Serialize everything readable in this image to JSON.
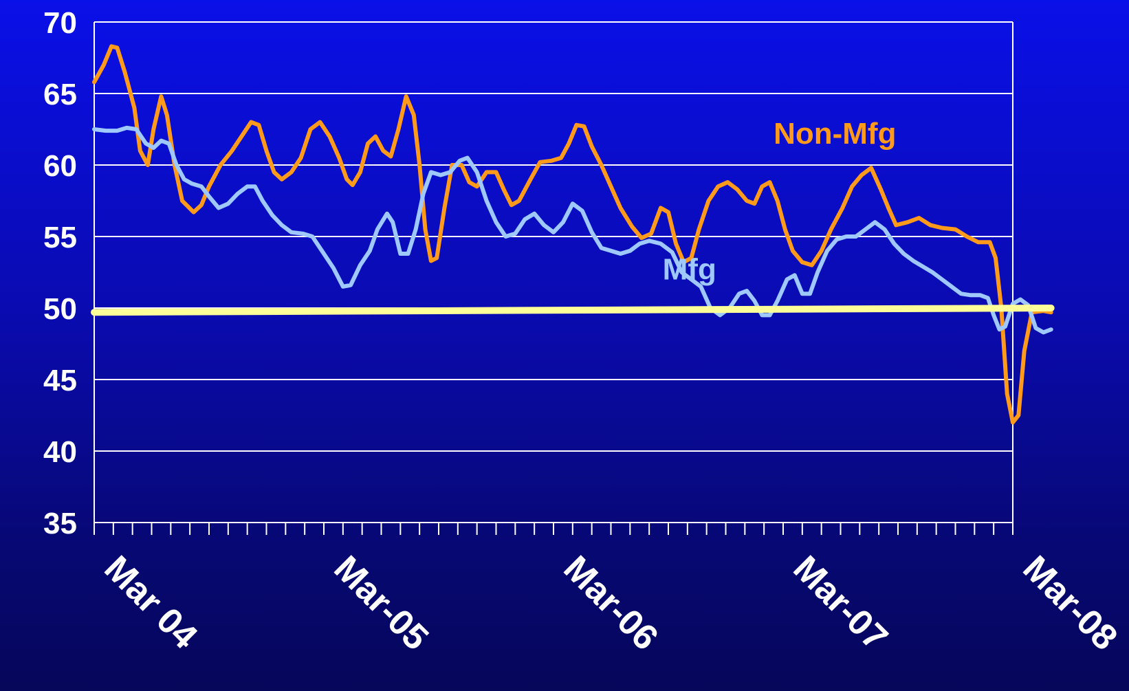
{
  "chart_data": {
    "type": "line",
    "ylim": [
      35,
      70
    ],
    "yticks": [
      35,
      40,
      45,
      50,
      55,
      60,
      65,
      70
    ],
    "xlim": [
      0,
      48
    ],
    "x_tick_count": 49,
    "x_labels": [
      {
        "x": 0,
        "label": "Mar 04"
      },
      {
        "x": 12,
        "label": "Mar-05"
      },
      {
        "x": 24,
        "label": "Mar-06"
      },
      {
        "x": 36,
        "label": "Mar-07"
      },
      {
        "x": 48,
        "label": "Mar-08"
      }
    ],
    "grid": true,
    "series": [
      {
        "name": "Non-Mfg",
        "color": "#ff9a1a",
        "label_at": [
          35.5,
          61.5
        ],
        "points": [
          [
            0,
            65.8
          ],
          [
            0.5,
            67.0
          ],
          [
            0.9,
            68.3
          ],
          [
            1.2,
            68.2
          ],
          [
            1.6,
            66.5
          ],
          [
            2.1,
            64.0
          ],
          [
            2.4,
            61.0
          ],
          [
            2.8,
            60.0
          ],
          [
            3.1,
            62.5
          ],
          [
            3.5,
            64.8
          ],
          [
            3.8,
            63.5
          ],
          [
            4.2,
            60.0
          ],
          [
            4.6,
            57.5
          ],
          [
            5.2,
            56.7
          ],
          [
            5.6,
            57.2
          ],
          [
            6.0,
            58.5
          ],
          [
            6.6,
            60.0
          ],
          [
            7.2,
            61.0
          ],
          [
            7.7,
            62.0
          ],
          [
            8.2,
            63.0
          ],
          [
            8.6,
            62.8
          ],
          [
            9.0,
            61.0
          ],
          [
            9.4,
            59.5
          ],
          [
            9.8,
            59.0
          ],
          [
            10.3,
            59.5
          ],
          [
            10.8,
            60.5
          ],
          [
            11.3,
            62.5
          ],
          [
            11.8,
            63.0
          ],
          [
            12.3,
            62.0
          ],
          [
            12.8,
            60.5
          ],
          [
            13.2,
            59.0
          ],
          [
            13.5,
            58.6
          ],
          [
            13.9,
            59.5
          ],
          [
            14.3,
            61.5
          ],
          [
            14.7,
            62.0
          ],
          [
            15.1,
            61.0
          ],
          [
            15.5,
            60.6
          ],
          [
            15.9,
            62.5
          ],
          [
            16.3,
            64.8
          ],
          [
            16.7,
            63.5
          ],
          [
            17.0,
            60.0
          ],
          [
            17.3,
            55.5
          ],
          [
            17.6,
            53.3
          ],
          [
            17.9,
            53.5
          ],
          [
            18.3,
            57.0
          ],
          [
            18.7,
            60.0
          ],
          [
            19.2,
            60.0
          ],
          [
            19.6,
            58.8
          ],
          [
            20.0,
            58.5
          ],
          [
            20.5,
            59.5
          ],
          [
            21.0,
            59.5
          ],
          [
            21.4,
            58.3
          ],
          [
            21.8,
            57.2
          ],
          [
            22.2,
            57.5
          ],
          [
            22.8,
            59.0
          ],
          [
            23.3,
            60.2
          ],
          [
            23.9,
            60.3
          ],
          [
            24.4,
            60.5
          ],
          [
            24.8,
            61.5
          ],
          [
            25.2,
            62.8
          ],
          [
            25.6,
            62.7
          ],
          [
            26.0,
            61.3
          ],
          [
            26.5,
            60.0
          ],
          [
            27.0,
            58.5
          ],
          [
            27.5,
            57.0
          ],
          [
            28.1,
            55.7
          ],
          [
            28.6,
            54.9
          ],
          [
            29.1,
            55.2
          ],
          [
            29.6,
            57.0
          ],
          [
            30.0,
            56.7
          ],
          [
            30.4,
            54.5
          ],
          [
            30.8,
            53.2
          ],
          [
            31.2,
            53.5
          ],
          [
            31.6,
            55.5
          ],
          [
            32.1,
            57.5
          ],
          [
            32.6,
            58.5
          ],
          [
            33.1,
            58.8
          ],
          [
            33.6,
            58.3
          ],
          [
            34.1,
            57.5
          ],
          [
            34.5,
            57.3
          ],
          [
            34.9,
            58.5
          ],
          [
            35.3,
            58.8
          ],
          [
            35.7,
            57.5
          ],
          [
            36.1,
            55.5
          ],
          [
            36.5,
            54.0
          ],
          [
            37.0,
            53.2
          ],
          [
            37.5,
            53.0
          ],
          [
            38.0,
            54.0
          ],
          [
            38.5,
            55.5
          ],
          [
            39.1,
            57.0
          ],
          [
            39.6,
            58.5
          ],
          [
            40.1,
            59.3
          ],
          [
            40.6,
            59.8
          ],
          [
            41.1,
            58.3
          ],
          [
            41.5,
            57.0
          ],
          [
            41.9,
            55.8
          ],
          [
            42.5,
            56.0
          ],
          [
            43.1,
            56.3
          ],
          [
            43.7,
            55.8
          ],
          [
            44.3,
            55.6
          ],
          [
            45.0,
            55.5
          ],
          [
            45.6,
            55.0
          ],
          [
            46.2,
            54.6
          ],
          [
            46.8,
            54.6
          ],
          [
            47.1,
            53.5
          ],
          [
            47.4,
            50.0
          ],
          [
            47.7,
            44.0
          ],
          [
            48.0,
            42.0
          ],
          [
            48.3,
            42.5
          ],
          [
            48.6,
            47.0
          ],
          [
            49.0,
            49.7
          ],
          [
            49.6,
            49.8
          ],
          [
            50.0,
            49.7
          ]
        ]
      },
      {
        "name": "Mfg",
        "color": "#9fc8ff",
        "label_at": [
          29.7,
          52.0
        ],
        "points": [
          [
            0,
            62.5
          ],
          [
            0.6,
            62.4
          ],
          [
            1.2,
            62.4
          ],
          [
            1.7,
            62.6
          ],
          [
            2.2,
            62.5
          ],
          [
            2.7,
            61.5
          ],
          [
            3.1,
            61.2
          ],
          [
            3.5,
            61.7
          ],
          [
            3.9,
            61.5
          ],
          [
            4.3,
            60.0
          ],
          [
            4.7,
            59.0
          ],
          [
            5.1,
            58.7
          ],
          [
            5.6,
            58.5
          ],
          [
            6.0,
            57.8
          ],
          [
            6.5,
            57.0
          ],
          [
            7.0,
            57.3
          ],
          [
            7.5,
            58.0
          ],
          [
            8.0,
            58.5
          ],
          [
            8.4,
            58.5
          ],
          [
            8.8,
            57.5
          ],
          [
            9.3,
            56.5
          ],
          [
            9.8,
            55.8
          ],
          [
            10.3,
            55.3
          ],
          [
            10.9,
            55.2
          ],
          [
            11.4,
            55.0
          ],
          [
            11.9,
            54.0
          ],
          [
            12.5,
            52.8
          ],
          [
            13.0,
            51.5
          ],
          [
            13.4,
            51.6
          ],
          [
            13.9,
            53.0
          ],
          [
            14.4,
            54.0
          ],
          [
            14.8,
            55.5
          ],
          [
            15.3,
            56.6
          ],
          [
            15.6,
            56.0
          ],
          [
            16.0,
            53.8
          ],
          [
            16.4,
            53.8
          ],
          [
            16.8,
            55.5
          ],
          [
            17.2,
            58.0
          ],
          [
            17.6,
            59.5
          ],
          [
            18.1,
            59.3
          ],
          [
            18.6,
            59.5
          ],
          [
            19.1,
            60.3
          ],
          [
            19.5,
            60.5
          ],
          [
            20.0,
            59.5
          ],
          [
            20.5,
            57.5
          ],
          [
            21.0,
            56.0
          ],
          [
            21.5,
            55.0
          ],
          [
            22.0,
            55.2
          ],
          [
            22.5,
            56.2
          ],
          [
            23.0,
            56.6
          ],
          [
            23.5,
            55.8
          ],
          [
            24.0,
            55.3
          ],
          [
            24.5,
            56.0
          ],
          [
            25.0,
            57.3
          ],
          [
            25.5,
            56.8
          ],
          [
            26.0,
            55.3
          ],
          [
            26.5,
            54.2
          ],
          [
            27.0,
            54.0
          ],
          [
            27.5,
            53.8
          ],
          [
            28.0,
            54.0
          ],
          [
            28.5,
            54.5
          ],
          [
            29.0,
            54.7
          ],
          [
            29.6,
            54.5
          ],
          [
            30.2,
            53.9
          ],
          [
            30.7,
            52.5
          ],
          [
            31.2,
            52.0
          ],
          [
            31.7,
            51.5
          ],
          [
            32.2,
            50.0
          ],
          [
            32.7,
            49.5
          ],
          [
            33.2,
            50.0
          ],
          [
            33.7,
            51.0
          ],
          [
            34.1,
            51.2
          ],
          [
            34.5,
            50.5
          ],
          [
            34.9,
            49.5
          ],
          [
            35.3,
            49.5
          ],
          [
            35.7,
            50.5
          ],
          [
            36.2,
            52.0
          ],
          [
            36.6,
            52.3
          ],
          [
            37.0,
            51.0
          ],
          [
            37.4,
            51.0
          ],
          [
            37.8,
            52.5
          ],
          [
            38.3,
            54.0
          ],
          [
            38.8,
            54.8
          ],
          [
            39.3,
            55.0
          ],
          [
            39.8,
            55.0
          ],
          [
            40.3,
            55.5
          ],
          [
            40.8,
            56.0
          ],
          [
            41.3,
            55.5
          ],
          [
            41.8,
            54.5
          ],
          [
            42.3,
            53.8
          ],
          [
            42.8,
            53.3
          ],
          [
            43.3,
            52.9
          ],
          [
            43.8,
            52.5
          ],
          [
            44.3,
            52.0
          ],
          [
            44.8,
            51.5
          ],
          [
            45.3,
            51.0
          ],
          [
            45.8,
            50.9
          ],
          [
            46.3,
            50.9
          ],
          [
            46.7,
            50.7
          ],
          [
            47.0,
            49.5
          ],
          [
            47.3,
            48.5
          ],
          [
            47.6,
            48.7
          ],
          [
            48.0,
            50.3
          ],
          [
            48.4,
            50.6
          ],
          [
            48.8,
            50.2
          ],
          [
            49.2,
            48.6
          ],
          [
            49.6,
            48.3
          ],
          [
            50.0,
            48.5
          ]
        ]
      },
      {
        "name": "",
        "color": "#ffff99",
        "points": [
          [
            0,
            49.7
          ],
          [
            50,
            50.0
          ]
        ]
      }
    ]
  }
}
